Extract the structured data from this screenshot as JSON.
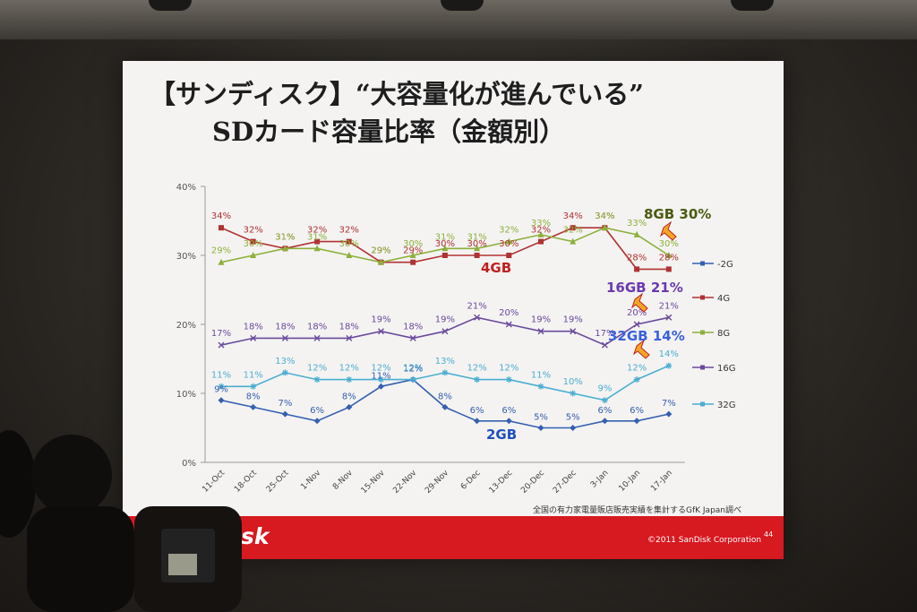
{
  "slide": {
    "title_line1": "【サンディスク】“大容量化が進んでいる”",
    "title_line2": "SDカード容量比率（金額別）",
    "source_note": "全国の有力家電量販店販売実績を集計するGfK Japan調べ",
    "brand": "SanDisk",
    "copyright": "©2011 SanDisk Corporation",
    "page_number": "44"
  },
  "chart_data": {
    "type": "line",
    "categories": [
      "11-Oct",
      "18-Oct",
      "25-Oct",
      "1-Nov",
      "8-Nov",
      "15-Nov",
      "22-Nov",
      "29-Nov",
      "6-Dec",
      "13-Dec",
      "20-Dec",
      "27-Dec",
      "3-Jan",
      "10-Jan",
      "17-Jan"
    ],
    "ylim": [
      0,
      40
    ],
    "yticks": [
      "0%",
      "10%",
      "20%",
      "30%",
      "40%"
    ],
    "series": [
      {
        "key": "s2g",
        "name": "2G",
        "legend": "-2G",
        "color": "#3560b0",
        "marker": "diamond",
        "values": [
          9,
          8,
          7,
          6,
          8,
          11,
          12,
          8,
          6,
          6,
          5,
          5,
          6,
          6,
          7
        ],
        "labels": [
          "9%",
          "8%",
          "7%",
          "6%",
          "8%",
          "11%",
          "12%",
          "8%",
          "6%",
          "6%",
          "5%",
          "5%",
          "6%",
          "6%",
          "7%"
        ]
      },
      {
        "key": "s4g",
        "name": "4G",
        "legend": "4G",
        "color": "#b03232",
        "marker": "square",
        "values": [
          34,
          32,
          31,
          32,
          32,
          29,
          29,
          30,
          30,
          30,
          32,
          34,
          34,
          28,
          28
        ],
        "labels": [
          "34%",
          "32%",
          "31%",
          "32%",
          "32%",
          "29%",
          "29%",
          "30%",
          "30%",
          "30%",
          "32%",
          "34%",
          "34%",
          "28%",
          "28%"
        ]
      },
      {
        "key": "s8g",
        "name": "8G",
        "legend": "8G",
        "color": "#8db03a",
        "marker": "triangle",
        "values": [
          29,
          30,
          31,
          31,
          30,
          29,
          30,
          31,
          31,
          32,
          33,
          32,
          34,
          33,
          30
        ],
        "labels": [
          "29%",
          "30%",
          "31%",
          "31%",
          "30%",
          "29%",
          "30%",
          "31%",
          "31%",
          "32%",
          "33%",
          "32%",
          "34%",
          "33%",
          "30%"
        ]
      },
      {
        "key": "s16g",
        "name": "16G",
        "legend": "16G",
        "color": "#6b4a9c",
        "marker": "x",
        "values": [
          17,
          18,
          18,
          18,
          18,
          19,
          18,
          19,
          21,
          20,
          19,
          19,
          17,
          20,
          21
        ],
        "labels": [
          "17%",
          "18%",
          "18%",
          "18%",
          "18%",
          "19%",
          "18%",
          "19%",
          "21%",
          "20%",
          "19%",
          "19%",
          "17%",
          "20%",
          "21%"
        ]
      },
      {
        "key": "s32g",
        "name": "32G",
        "legend": "32G",
        "color": "#4aaed0",
        "marker": "star",
        "values": [
          11,
          11,
          13,
          12,
          12,
          12,
          12,
          13,
          12,
          12,
          11,
          10,
          9,
          12,
          14
        ],
        "labels": [
          "11%",
          "11%",
          "13%",
          "12%",
          "12%",
          "12%",
          "12%",
          "13%",
          "12%",
          "12%",
          "11%",
          "10%",
          "9%",
          "12%",
          "14%"
        ]
      }
    ],
    "callouts": [
      {
        "key": "c2g",
        "text": "2GB",
        "color": "#2050c0"
      },
      {
        "key": "c4g",
        "text": "4GB",
        "color": "#c02020"
      },
      {
        "key": "c8g",
        "text": "8GB 30%",
        "color": "#4a5a10"
      },
      {
        "key": "c16g",
        "text": "16GB 21%",
        "color": "#6a3ab0"
      },
      {
        "key": "c32g",
        "text": "32GB 14%",
        "color": "#3a60e0"
      }
    ],
    "grid": false,
    "legend_position": "right"
  }
}
